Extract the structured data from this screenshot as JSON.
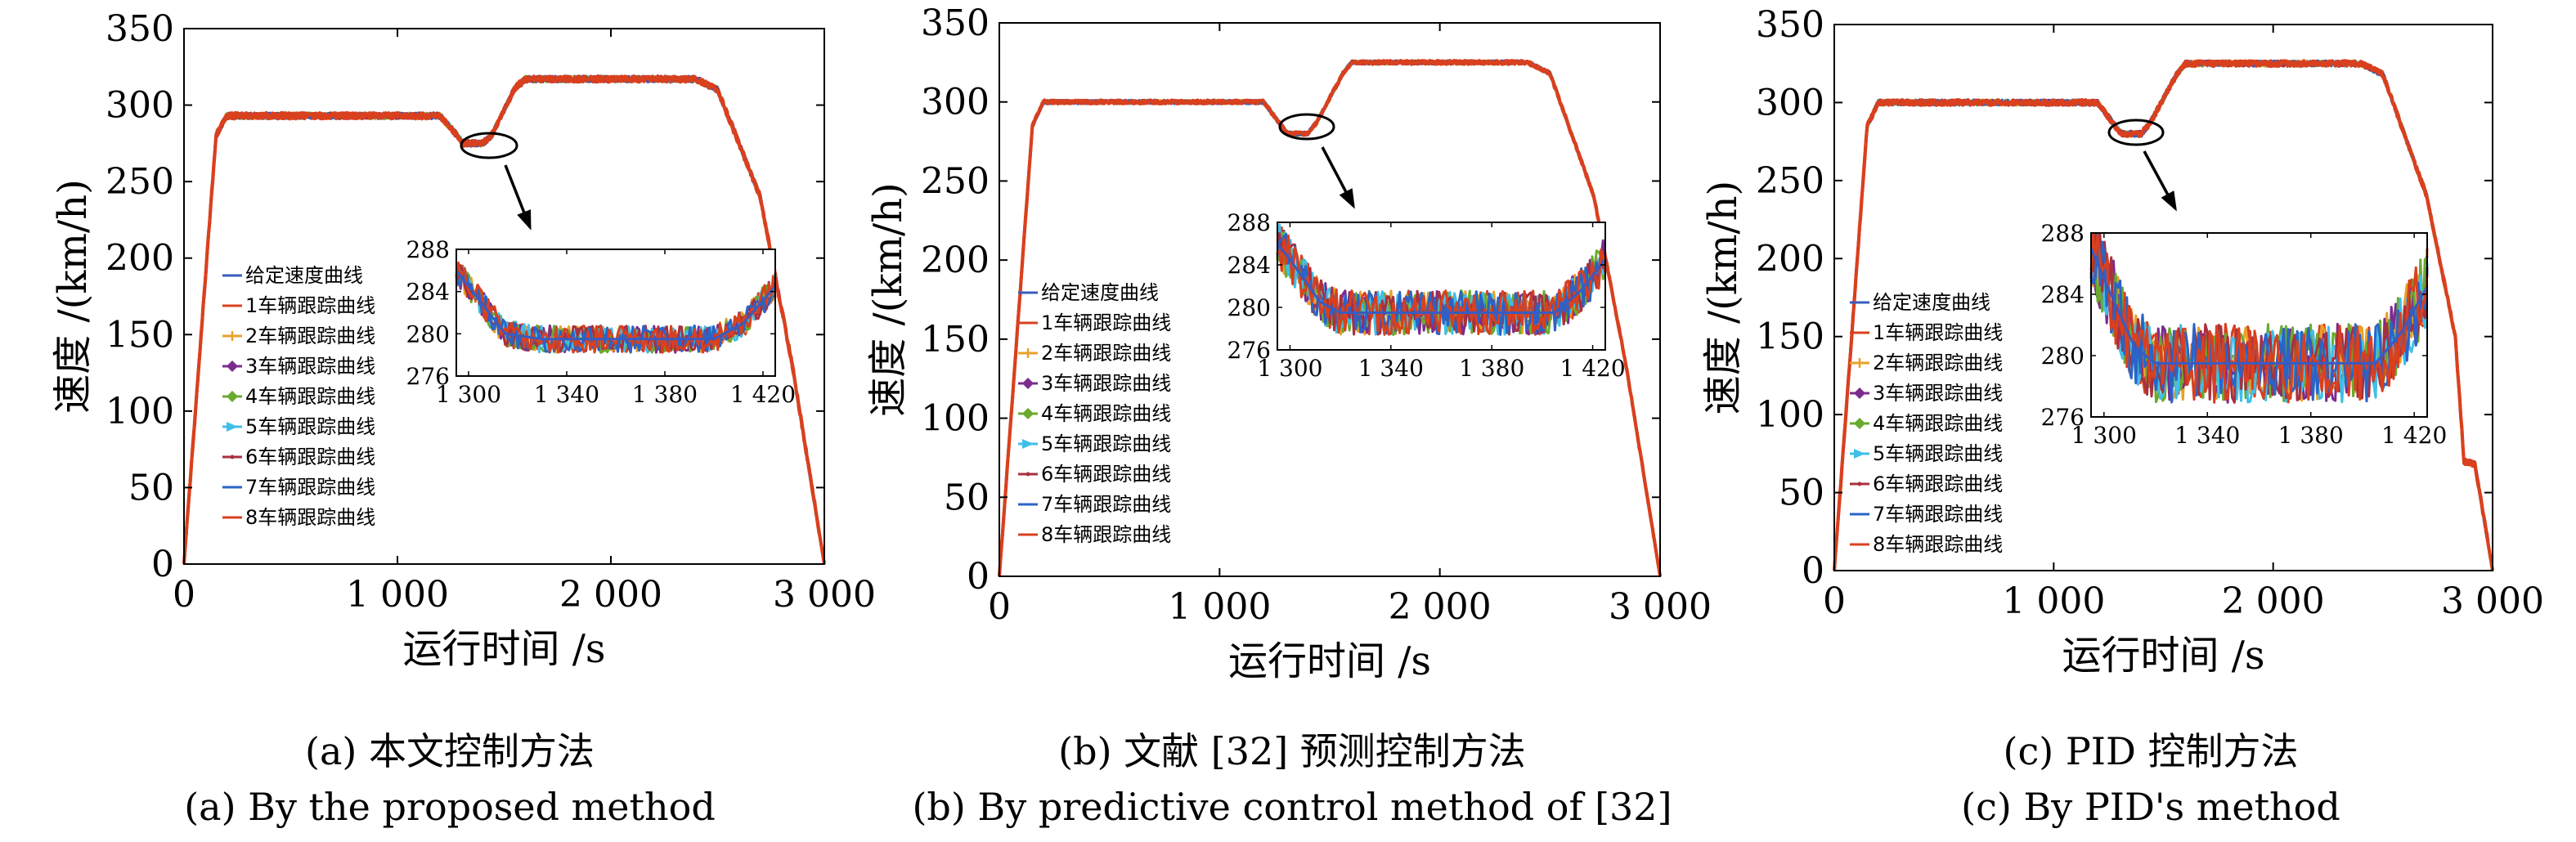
{
  "colors": {
    "given": "#3a5bbf",
    "v1": "#d9401e",
    "v2": "#e8a12b",
    "v3": "#7b2c8e",
    "v4": "#6aaa2e",
    "v5": "#3fbfe8",
    "v6": "#a83040",
    "v7": "#2a64c8",
    "v8": "#d9401e",
    "axis": "#000000"
  },
  "chart_data": [
    {
      "type": "line",
      "ylabel": "速度 /(km/h)",
      "xlabel": "运行时间 /s",
      "xlim": [
        0,
        3000
      ],
      "ylim": [
        0,
        350
      ],
      "xticks": [
        0,
        1000,
        2000,
        3000
      ],
      "xtick_labels": [
        "0",
        "1 000",
        "2 000",
        "3 000"
      ],
      "yticks": [
        0,
        50,
        100,
        150,
        200,
        250,
        300,
        350
      ],
      "ytick_labels": [
        "0",
        "50",
        "100",
        "150",
        "200",
        "250",
        "300",
        "350"
      ],
      "legend": [
        "给定速度曲线",
        "1车辆跟踪曲线",
        "2车辆跟踪曲线",
        "3车辆跟踪曲线",
        "4车辆跟踪曲线",
        "5车辆跟踪曲线",
        "6车辆跟踪曲线",
        "7车辆跟踪曲线",
        "8车辆跟踪曲线"
      ],
      "profile": [
        [
          0,
          0
        ],
        [
          150,
          280
        ],
        [
          200,
          293
        ],
        [
          1200,
          293
        ],
        [
          1280,
          280
        ],
        [
          1310,
          275
        ],
        [
          1400,
          275
        ],
        [
          1440,
          280
        ],
        [
          1550,
          311
        ],
        [
          1600,
          317
        ],
        [
          2400,
          317
        ],
        [
          2500,
          310
        ],
        [
          2700,
          240
        ],
        [
          2850,
          130
        ],
        [
          3000,
          0
        ]
      ],
      "noise": 2.0,
      "inset": {
        "xlim": [
          1295,
          1425
        ],
        "ylim": [
          276,
          288
        ],
        "xticks": [
          1300,
          1340,
          1380,
          1420
        ],
        "xtick_labels": [
          "1 300",
          "1 340",
          "1 380",
          "1 420"
        ],
        "yticks": [
          276,
          280,
          284,
          288
        ],
        "ytick_labels": [
          "276",
          "280",
          "284",
          "288"
        ],
        "base": [
          [
            1295,
            286
          ],
          [
            1300,
            284.5
          ],
          [
            1315,
            280
          ],
          [
            1330,
            279.5
          ],
          [
            1400,
            279.5
          ],
          [
            1412,
            281
          ],
          [
            1425,
            284.5
          ]
        ],
        "amp": 0.8
      },
      "caption_cn": "(a) 本文控制方法",
      "caption_en": "(a) By the proposed method"
    },
    {
      "type": "line",
      "ylabel": "速度 /(km/h)",
      "xlabel": "运行时间 /s",
      "xlim": [
        0,
        3000
      ],
      "ylim": [
        0,
        350
      ],
      "xticks": [
        0,
        1000,
        2000,
        3000
      ],
      "xtick_labels": [
        "0",
        "1 000",
        "2 000",
        "3 000"
      ],
      "yticks": [
        0,
        50,
        100,
        150,
        200,
        250,
        300,
        350
      ],
      "ytick_labels": [
        "0",
        "50",
        "100",
        "150",
        "200",
        "250",
        "300",
        "350"
      ],
      "legend": [
        "给定速度曲线",
        "1车辆跟踪曲线",
        "2车辆跟踪曲线",
        "3车辆跟踪曲线",
        "4车辆跟踪曲线",
        "5车辆跟踪曲线",
        "6车辆跟踪曲线",
        "7车辆跟踪曲线",
        "8车辆跟踪曲线"
      ],
      "profile": [
        [
          0,
          0
        ],
        [
          150,
          285
        ],
        [
          200,
          300
        ],
        [
          1200,
          300
        ],
        [
          1280,
          285
        ],
        [
          1310,
          280
        ],
        [
          1400,
          280
        ],
        [
          1440,
          287
        ],
        [
          1560,
          318
        ],
        [
          1600,
          325
        ],
        [
          2400,
          325
        ],
        [
          2500,
          318
        ],
        [
          2700,
          240
        ],
        [
          2850,
          130
        ],
        [
          3000,
          0
        ]
      ],
      "noise": 1.2,
      "inset": {
        "xlim": [
          1295,
          1425
        ],
        "ylim": [
          276,
          288
        ],
        "xticks": [
          1300,
          1340,
          1380,
          1420
        ],
        "xtick_labels": [
          "1 300",
          "1 340",
          "1 380",
          "1 420"
        ],
        "yticks": [
          276,
          280,
          284,
          288
        ],
        "ytick_labels": [
          "276",
          "280",
          "284",
          "288"
        ],
        "base": [
          [
            1295,
            286
          ],
          [
            1300,
            284.5
          ],
          [
            1312,
            280.5
          ],
          [
            1320,
            279.5
          ],
          [
            1405,
            279.5
          ],
          [
            1415,
            281.5
          ],
          [
            1425,
            284.5
          ]
        ],
        "amp": 1.3
      },
      "caption_cn": "(b) 文献 [32] 预测控制方法",
      "caption_en": "(b) By predictive control method of [32]"
    },
    {
      "type": "line",
      "ylabel": "速度 /(km/h)",
      "xlabel": "运行时间 /s",
      "xlim": [
        0,
        3000
      ],
      "ylim": [
        0,
        350
      ],
      "xticks": [
        0,
        1000,
        2000,
        3000
      ],
      "xtick_labels": [
        "0",
        "1 000",
        "2 000",
        "3 000"
      ],
      "yticks": [
        0,
        50,
        100,
        150,
        200,
        250,
        300,
        350
      ],
      "ytick_labels": [
        "0",
        "50",
        "100",
        "150",
        "200",
        "250",
        "300",
        "350"
      ],
      "legend": [
        "给定速度曲线",
        "1车辆跟踪曲线",
        "2车辆跟踪曲线",
        "3车辆跟踪曲线",
        "4车辆跟踪曲线",
        "5车辆跟踪曲线",
        "6车辆跟踪曲线",
        "7车辆跟踪曲线",
        "8车辆跟踪曲线"
      ],
      "profile": [
        [
          0,
          0
        ],
        [
          150,
          285
        ],
        [
          200,
          300
        ],
        [
          1200,
          300
        ],
        [
          1280,
          285
        ],
        [
          1310,
          280
        ],
        [
          1400,
          280
        ],
        [
          1440,
          287
        ],
        [
          1560,
          318
        ],
        [
          1600,
          325
        ],
        [
          2400,
          325
        ],
        [
          2500,
          318
        ],
        [
          2700,
          240
        ],
        [
          2830,
          150
        ],
        [
          2870,
          70
        ],
        [
          2920,
          68
        ],
        [
          3000,
          0
        ]
      ],
      "noise": 1.8,
      "inset": {
        "xlim": [
          1295,
          1425
        ],
        "ylim": [
          276,
          288
        ],
        "xticks": [
          1300,
          1340,
          1380,
          1420
        ],
        "xtick_labels": [
          "1 300",
          "1 340",
          "1 380",
          "1 420"
        ],
        "yticks": [
          276,
          280,
          284,
          288
        ],
        "ytick_labels": [
          "276",
          "280",
          "284",
          "288"
        ],
        "base": [
          [
            1295,
            287
          ],
          [
            1300,
            285
          ],
          [
            1312,
            280.5
          ],
          [
            1320,
            279.5
          ],
          [
            1405,
            279.5
          ],
          [
            1415,
            281.5
          ],
          [
            1425,
            284.5
          ]
        ],
        "amp": 1.6
      },
      "caption_cn": "(c) PID 控制方法",
      "caption_en": "(c) By PID's method"
    }
  ]
}
